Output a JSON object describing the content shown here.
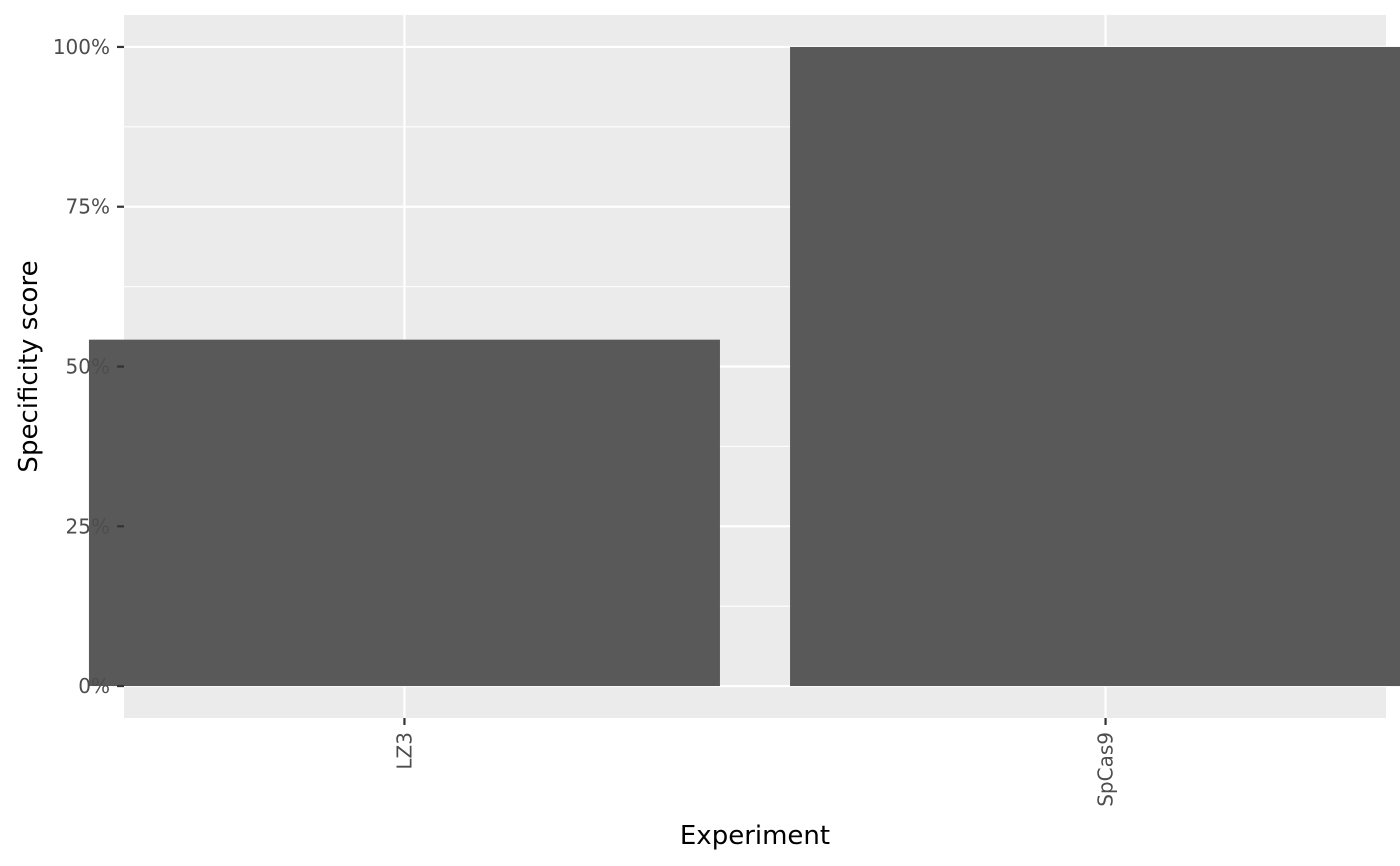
{
  "chart_data": {
    "type": "bar",
    "categories": [
      "LZ3",
      "SpCas9"
    ],
    "values": [
      0.542,
      1.0
    ],
    "xlabel": "Experiment",
    "ylabel": "Specificity score",
    "ylim": [
      -0.05,
      1.05
    ],
    "y_ticks": [
      0,
      0.25,
      0.5,
      0.75,
      1.0
    ],
    "y_tick_labels": [
      "0%",
      "25%",
      "50%",
      "75%",
      "100%"
    ],
    "y_minor_ticks": [
      0.125,
      0.375,
      0.625,
      0.875
    ],
    "x_tick_labels_rotated": true,
    "grid": true,
    "colors": {
      "panel_background": "#ebebeb",
      "gridline": "#ffffff",
      "bar_fill": "#595959",
      "tick_mark": "#333333",
      "tick_text": "#4d4d4d",
      "title_text": "#000000"
    }
  }
}
